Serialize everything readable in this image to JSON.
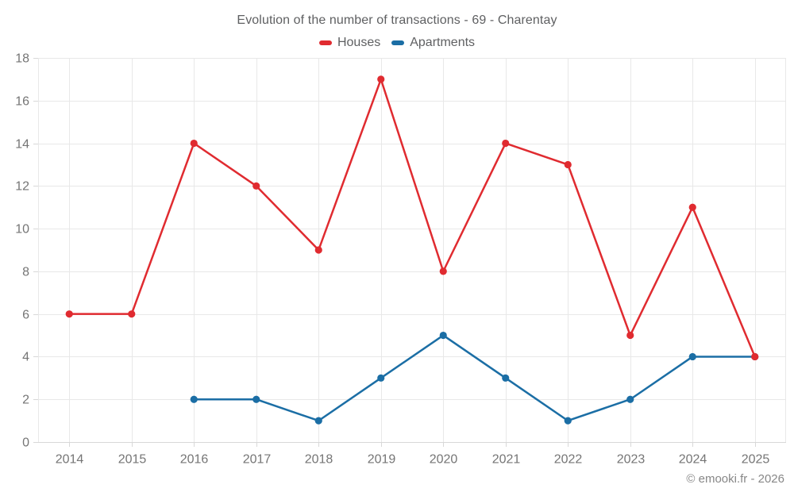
{
  "header": {
    "title": "Evolution of the number of transactions - 69 - Charentay"
  },
  "footer": {
    "credit": "© emooki.fr - 2026"
  },
  "chart_data": {
    "type": "line",
    "title": "Evolution of the number of transactions - 69 - Charentay",
    "categories": [
      "2014",
      "2015",
      "2016",
      "2017",
      "2018",
      "2019",
      "2020",
      "2021",
      "2022",
      "2023",
      "2024",
      "2025"
    ],
    "series": [
      {
        "name": "Houses",
        "color": "#e02b30",
        "values": [
          6,
          6,
          14,
          12,
          9,
          17,
          8,
          14,
          13,
          5,
          11,
          4
        ]
      },
      {
        "name": "Apartments",
        "color": "#1b6ea5",
        "values": [
          null,
          null,
          2,
          2,
          1,
          3,
          5,
          3,
          1,
          2,
          4,
          4
        ]
      }
    ],
    "xlabel": "",
    "ylabel": "",
    "ylim": [
      0,
      18
    ],
    "ytick_step": 2,
    "grid": true,
    "legend_position": "top",
    "colors": {
      "grid_line": "#e8e8e8",
      "axis_line": "#d8d8d8",
      "tick_label": "#757575"
    }
  }
}
